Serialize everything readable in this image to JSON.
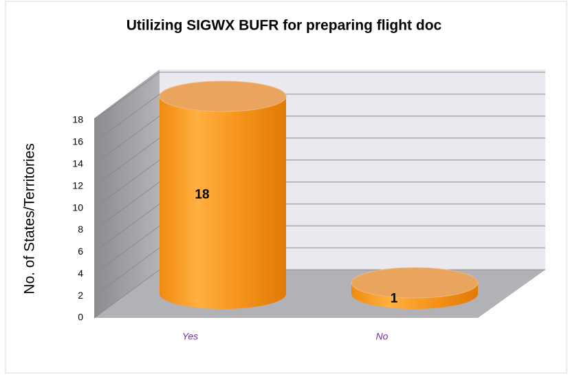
{
  "chart_data": {
    "type": "bar3d",
    "title": "Utilizing SIGWX BUFR for preparing flight doc",
    "y_label": "No. of States/Territories",
    "categories": [
      "Yes",
      "No"
    ],
    "values": [
      18,
      1
    ],
    "color": "#f7941d",
    "ylim": [
      0,
      18
    ],
    "yticks": [
      0,
      2,
      4,
      6,
      8,
      10,
      12,
      14,
      16,
      18
    ],
    "grid": true
  }
}
